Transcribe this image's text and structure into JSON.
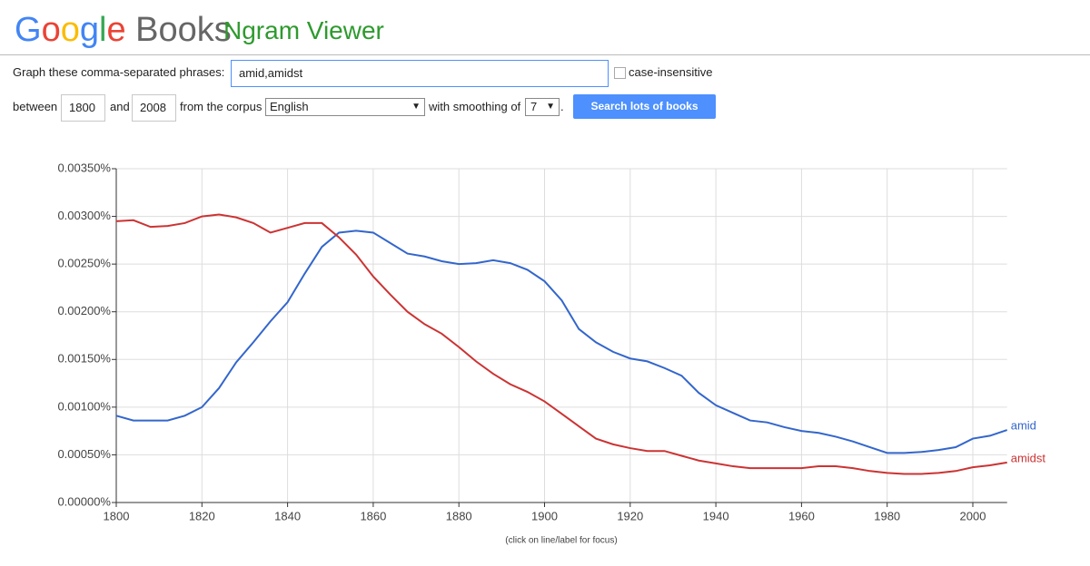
{
  "header": {
    "logo": "Google",
    "product": "Books",
    "title": "Ngram Viewer"
  },
  "form": {
    "phrases_label": "Graph these comma-separated phrases:",
    "phrases": "amid,amidst",
    "case_label": "case-insensitive",
    "between": "between",
    "start_year": "1800",
    "and": "and",
    "end_year": "2008",
    "corpus_label": "from the corpus",
    "corpus": "English",
    "smoothing_label": "with smoothing of",
    "smoothing": "7",
    "period": ".",
    "button": "Search lots of books"
  },
  "chart_data": {
    "type": "line",
    "note": "(click on line/label for focus)",
    "x": [
      1800,
      1804,
      1808,
      1812,
      1816,
      1820,
      1824,
      1828,
      1832,
      1836,
      1840,
      1844,
      1848,
      1852,
      1856,
      1860,
      1864,
      1868,
      1872,
      1876,
      1880,
      1884,
      1888,
      1892,
      1896,
      1900,
      1904,
      1908,
      1912,
      1916,
      1920,
      1924,
      1928,
      1932,
      1936,
      1940,
      1944,
      1948,
      1952,
      1956,
      1960,
      1964,
      1968,
      1972,
      1976,
      1980,
      1984,
      1988,
      1992,
      1996,
      2000,
      2004,
      2008
    ],
    "series": [
      {
        "name": "amid",
        "color": "#3366cc",
        "values": [
          0.00091,
          0.00086,
          0.00086,
          0.00086,
          0.00091,
          0.001,
          0.0012,
          0.00147,
          0.00168,
          0.0019,
          0.0021,
          0.0024,
          0.00268,
          0.00283,
          0.00285,
          0.00283,
          0.00272,
          0.00261,
          0.00258,
          0.00253,
          0.0025,
          0.00251,
          0.00254,
          0.00251,
          0.00244,
          0.00232,
          0.00212,
          0.00182,
          0.00168,
          0.00158,
          0.00151,
          0.00148,
          0.00141,
          0.00133,
          0.00115,
          0.00102,
          0.00094,
          0.00086,
          0.00084,
          0.00079,
          0.00075,
          0.00073,
          0.00069,
          0.00064,
          0.00058,
          0.00052,
          0.00052,
          0.00053,
          0.00055,
          0.00058,
          0.00067,
          0.0007,
          0.00076
        ]
      },
      {
        "name": "amidst",
        "color": "#cc3333",
        "values": [
          0.00295,
          0.00296,
          0.00289,
          0.0029,
          0.00293,
          0.003,
          0.00302,
          0.00299,
          0.00293,
          0.00283,
          0.00288,
          0.00293,
          0.00293,
          0.00278,
          0.0026,
          0.00237,
          0.00218,
          0.002,
          0.00187,
          0.00177,
          0.00163,
          0.00148,
          0.00135,
          0.00124,
          0.00116,
          0.00106,
          0.00093,
          0.0008,
          0.00067,
          0.00061,
          0.00057,
          0.00054,
          0.00054,
          0.00049,
          0.00044,
          0.00041,
          0.00038,
          0.00036,
          0.00036,
          0.00036,
          0.00036,
          0.00038,
          0.00038,
          0.00036,
          0.00033,
          0.00031,
          0.0003,
          0.0003,
          0.00031,
          0.00033,
          0.00037,
          0.00039,
          0.00042
        ]
      }
    ],
    "xlim": [
      1800,
      2008
    ],
    "xticks": [
      1800,
      1820,
      1840,
      1860,
      1880,
      1900,
      1920,
      1940,
      1960,
      1980,
      2000
    ],
    "ylim": [
      0,
      0.0035
    ],
    "yticks": [
      {
        "value": 0,
        "label": "0.00000%"
      },
      {
        "value": 0.0005,
        "label": "0.00050%"
      },
      {
        "value": 0.001,
        "label": "0.00100%"
      },
      {
        "value": 0.0015,
        "label": "0.00150%"
      },
      {
        "value": 0.002,
        "label": "0.00200%"
      },
      {
        "value": 0.0025,
        "label": "0.00250%"
      },
      {
        "value": 0.003,
        "label": "0.00300%"
      },
      {
        "value": 0.0035,
        "label": "0.00350%"
      }
    ],
    "grid": true
  }
}
